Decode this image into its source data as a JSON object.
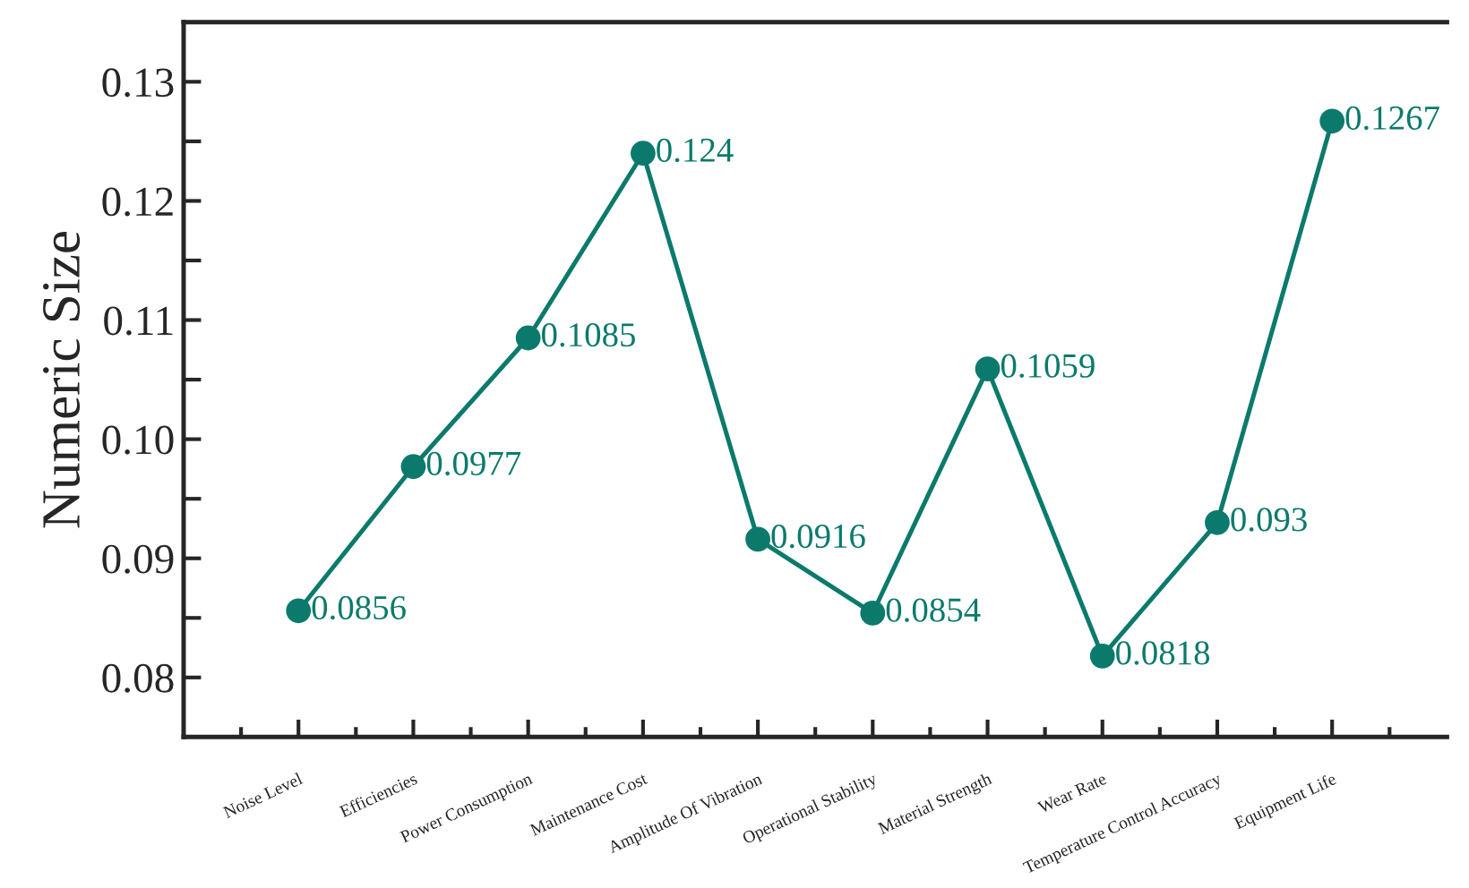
{
  "chart_data": {
    "type": "line",
    "ylabel": "Numeric Size",
    "categories": [
      "Noise Level",
      "Efficiencies",
      "Power Consumption",
      "Maintenance Cost",
      "Amplitude Of Vibration",
      "Operational Stability",
      "Material Strength",
      "Wear Rate",
      "Temperature Control Accuracy",
      "Equipment Life"
    ],
    "series": [
      {
        "color": "#0b7a6c",
        "values": [
          0.0856,
          0.0977,
          0.1085,
          0.124,
          0.0916,
          0.0854,
          0.1059,
          0.0818,
          0.093,
          0.1267
        ]
      }
    ],
    "ylim": [
      0.075,
      0.135
    ],
    "yticks": [
      0.08,
      {
        "value": 0.085,
        "label": null
      },
      {
        "value": 0.09,
        "label": "0.09"
      },
      {
        "value": 0.095,
        "label": null
      },
      {
        "value": 0.1,
        "label": "0.10"
      },
      {
        "value": 0.105,
        "label": null
      },
      0.11,
      {
        "value": 0.115,
        "label": null
      },
      0.12,
      {
        "value": 0.125,
        "label": null
      },
      0.13
    ],
    "data_labels": true,
    "marker": "circle",
    "line_style": "solid",
    "grid": false,
    "legend": false
  }
}
